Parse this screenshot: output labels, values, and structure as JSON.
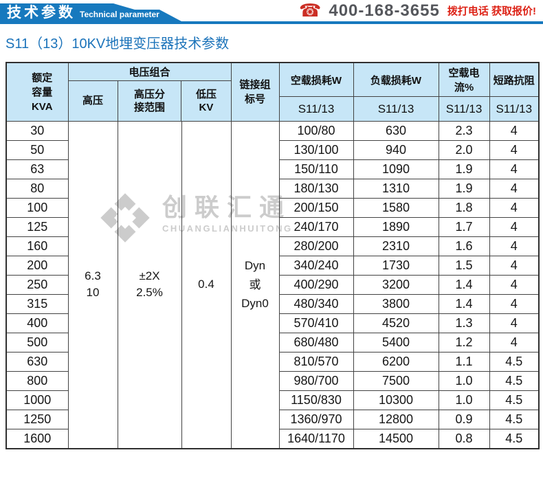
{
  "header": {
    "banner_title_zh": "技术参数",
    "banner_title_en": "Technical parameter",
    "phone_number": "400-168-3655",
    "phone_cta": "拨打电话 获取报价!",
    "accent_blue": "#1779be",
    "cta_red": "#dd2317",
    "phone_number_color": "#55575c"
  },
  "page_title": "S11（13）10KV地埋变压器技术参数",
  "watermark": {
    "logo": "diamond-logo",
    "brand_zh": "创联汇通",
    "brand_en": "CHUANGLIANHUITONG",
    "color": "#c7c7c7"
  },
  "table": {
    "header_bg": "#c7e6f7",
    "headers": {
      "capacity": "额定\n容量\nKVA",
      "voltage_group": "电压组合",
      "high_voltage": "高压",
      "hv_tap_range": "高压分\n接范围",
      "low_voltage": "低压\nKV",
      "connection_group": "链接组\n标号",
      "no_load_loss": "空载损耗W",
      "load_loss": "负载损耗W",
      "no_load_current": "空载电流%",
      "short_circuit_impedance": "短路抗阻",
      "model": "S11/13"
    },
    "merged": {
      "high_voltage": "6.3\n10",
      "hv_tap_range": "±2X\n2.5%",
      "low_voltage": "0.4",
      "connection_group": "Dyn\n或\nDyn0"
    },
    "rows": [
      {
        "kva": "30",
        "no_load_loss": "100/80",
        "load_loss": "630",
        "no_load_current": "2.3",
        "impedance": "4"
      },
      {
        "kva": "50",
        "no_load_loss": "130/100",
        "load_loss": "940",
        "no_load_current": "2.0",
        "impedance": "4"
      },
      {
        "kva": "63",
        "no_load_loss": "150/110",
        "load_loss": "1090",
        "no_load_current": "1.9",
        "impedance": "4"
      },
      {
        "kva": "80",
        "no_load_loss": "180/130",
        "load_loss": "1310",
        "no_load_current": "1.9",
        "impedance": "4"
      },
      {
        "kva": "100",
        "no_load_loss": "200/150",
        "load_loss": "1580",
        "no_load_current": "1.8",
        "impedance": "4"
      },
      {
        "kva": "125",
        "no_load_loss": "240/170",
        "load_loss": "1890",
        "no_load_current": "1.7",
        "impedance": "4"
      },
      {
        "kva": "160",
        "no_load_loss": "280/200",
        "load_loss": "2310",
        "no_load_current": "1.6",
        "impedance": "4"
      },
      {
        "kva": "200",
        "no_load_loss": "340/240",
        "load_loss": "1730",
        "no_load_current": "1.5",
        "impedance": "4"
      },
      {
        "kva": "250",
        "no_load_loss": "400/290",
        "load_loss": "3200",
        "no_load_current": "1.4",
        "impedance": "4"
      },
      {
        "kva": "315",
        "no_load_loss": "480/340",
        "load_loss": "3800",
        "no_load_current": "1.4",
        "impedance": "4"
      },
      {
        "kva": "400",
        "no_load_loss": "570/410",
        "load_loss": "4520",
        "no_load_current": "1.3",
        "impedance": "4"
      },
      {
        "kva": "500",
        "no_load_loss": "680/480",
        "load_loss": "5400",
        "no_load_current": "1.2",
        "impedance": "4"
      },
      {
        "kva": "630",
        "no_load_loss": "810/570",
        "load_loss": "6200",
        "no_load_current": "1.1",
        "impedance": "4.5"
      },
      {
        "kva": "800",
        "no_load_loss": "980/700",
        "load_loss": "7500",
        "no_load_current": "1.0",
        "impedance": "4.5"
      },
      {
        "kva": "1000",
        "no_load_loss": "1150/830",
        "load_loss": "10300",
        "no_load_current": "1.0",
        "impedance": "4.5"
      },
      {
        "kva": "1250",
        "no_load_loss": "1360/970",
        "load_loss": "12800",
        "no_load_current": "0.9",
        "impedance": "4.5"
      },
      {
        "kva": "1600",
        "no_load_loss": "1640/1170",
        "load_loss": "14500",
        "no_load_current": "0.8",
        "impedance": "4.5"
      }
    ]
  }
}
